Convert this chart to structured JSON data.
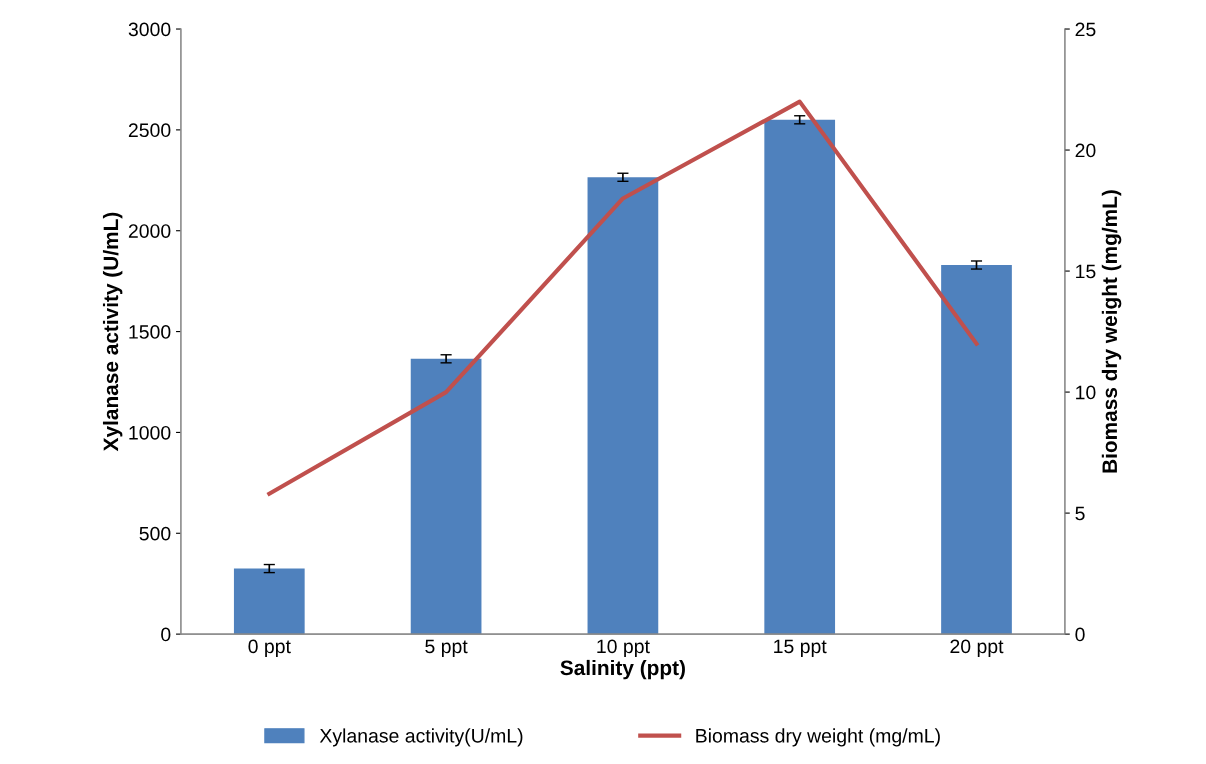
{
  "chart_data": {
    "type": "bar",
    "xlabel": "Salinity (ppt)",
    "ylabel": "Xylanase activity (U/mL)",
    "y2label": "Biomass dry weight (mg/mL)",
    "categories": [
      "0 ppt",
      "5 ppt",
      "10 ppt",
      "15 ppt",
      "20 ppt"
    ],
    "series": [
      {
        "name": "Xylanase activity(U/mL)",
        "color": "#4f81bd",
        "values": [
          325,
          1365,
          2265,
          2550,
          1830
        ],
        "errors": [
          20,
          20,
          20,
          20,
          20
        ]
      },
      {
        "name": "Biomass dry weight (mg/mL)",
        "type": "line",
        "axis": "y2",
        "color": "#c0504d",
        "values": [
          5.8,
          10,
          18,
          22,
          12
        ]
      }
    ],
    "ylim": [
      0,
      3000
    ],
    "yticks": [
      0,
      500,
      1000,
      1500,
      2000,
      2500,
      3000
    ],
    "y2lim": [
      0,
      25
    ],
    "y2ticks": [
      0,
      5,
      10,
      15,
      20,
      25
    ],
    "grid": false,
    "legend": "bottom",
    "marker": "none",
    "line_style": "solid"
  }
}
